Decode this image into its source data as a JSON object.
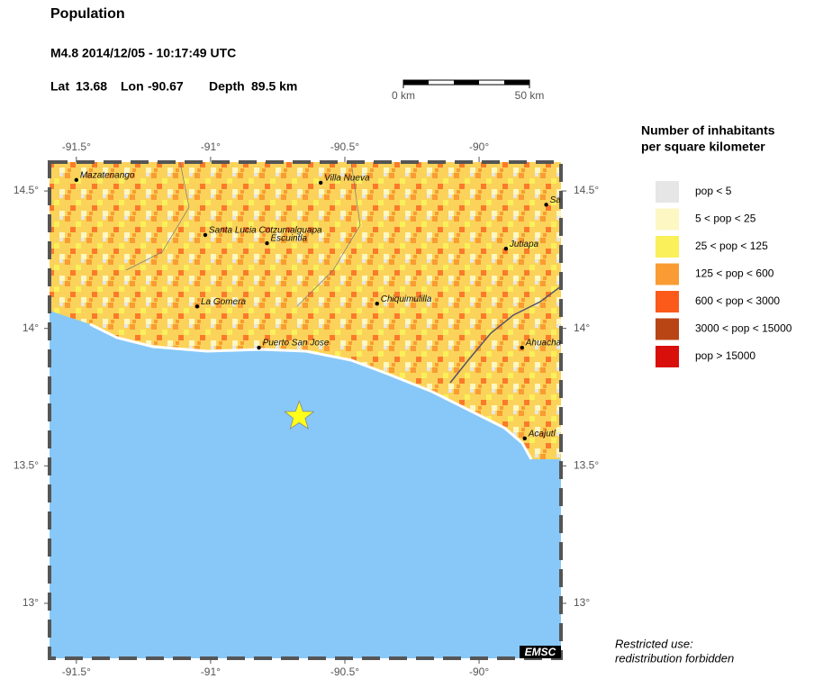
{
  "header": {
    "title": "Population",
    "event": "M4.8  2014/12/05 - 10:17:49 UTC",
    "lat_label": "Lat",
    "lat": 13.68,
    "lon_label": "Lon",
    "lon": -90.67,
    "depth_label": "Depth",
    "depth": "89.5 km"
  },
  "scale_bar": {
    "start": "0 km",
    "end": "50 km"
  },
  "map": {
    "lon_range": [
      -91.6,
      -89.695
    ],
    "lat_range": [
      12.8,
      14.605
    ],
    "lon_ticks": [
      {
        "value": -91.5,
        "label": "-91.5°"
      },
      {
        "value": -91,
        "label": "-91°"
      },
      {
        "value": -90.5,
        "label": "-90.5°"
      },
      {
        "value": -90,
        "label": "-90°"
      }
    ],
    "lat_ticks": [
      {
        "value": 14.5,
        "label": "14.5°"
      },
      {
        "value": 14,
        "label": "14°"
      },
      {
        "value": 13.5,
        "label": "13.5°"
      },
      {
        "value": 13,
        "label": "13°"
      }
    ],
    "cities": [
      {
        "name": "Mazatenango",
        "lon": -91.5,
        "lat": 14.54
      },
      {
        "name": "Villa Nueva",
        "lon": -90.59,
        "lat": 14.53
      },
      {
        "name": "Santa Lucia Cotzumalguapa",
        "lon": -91.02,
        "lat": 14.34
      },
      {
        "name": "Escuintla",
        "lon": -90.79,
        "lat": 14.31
      },
      {
        "name": "Jutiapa",
        "lon": -89.9,
        "lat": 14.29
      },
      {
        "name": "Sa",
        "lon": -89.75,
        "lat": 14.45
      },
      {
        "name": "La Gomera",
        "lon": -91.05,
        "lat": 14.08
      },
      {
        "name": "Chiquimulilla",
        "lon": -90.38,
        "lat": 14.09
      },
      {
        "name": "Puerto San Jose",
        "lon": -90.82,
        "lat": 13.93
      },
      {
        "name": "Ahuacha",
        "lon": -89.84,
        "lat": 13.93
      },
      {
        "name": "Acajutl",
        "lon": -89.83,
        "lat": 13.6
      }
    ],
    "logo": "EMSC"
  },
  "legend": {
    "title": [
      "Number of inhabitants",
      "per square kilometer"
    ],
    "items": [
      {
        "label": "pop < 5",
        "color": "#e6e6e6"
      },
      {
        "label": "5 < pop < 25",
        "color": "#fdf7c3"
      },
      {
        "label": "25 < pop < 125",
        "color": "#f9f05a"
      },
      {
        "label": "125 < pop < 600",
        "color": "#f99c33"
      },
      {
        "label": "600 < pop < 3000",
        "color": "#fb5a1a"
      },
      {
        "label": "3000 < pop < 15000",
        "color": "#b94414"
      },
      {
        "label": "pop > 15000",
        "color": "#d80f0a"
      }
    ]
  },
  "footer": [
    "Restricted use:",
    "redistribution forbidden"
  ]
}
